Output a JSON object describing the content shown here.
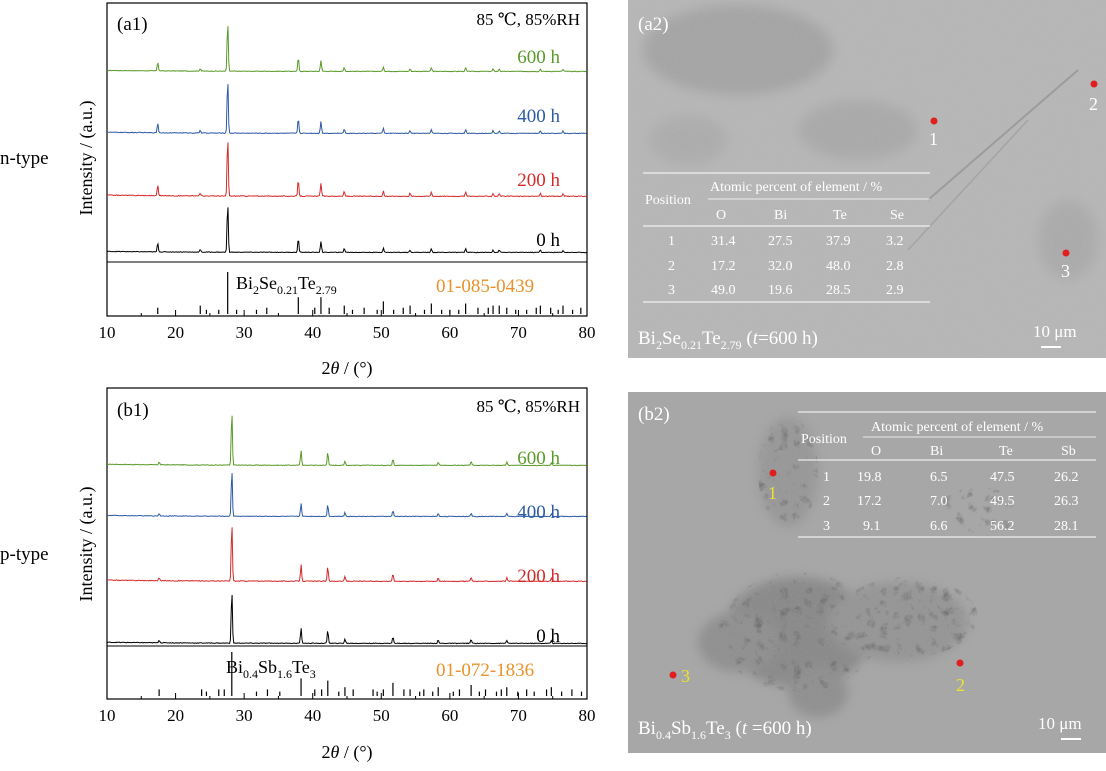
{
  "chart_data": [
    {
      "type": "line",
      "panel_label": "(a1)",
      "side_label": "n-type",
      "condition": "85 ℃, 85%RH",
      "xlabel_prefix": "2",
      "xlabel_theta": "θ",
      "xlabel_suffix": " / (°)",
      "ylabel": "Intensity / (a.u.)",
      "xlim": [
        10,
        80
      ],
      "xticks": [
        "10",
        "20",
        "30",
        "40",
        "50",
        "60",
        "70",
        "80"
      ],
      "series": [
        {
          "name": "600 h",
          "color": "#5a9a2a"
        },
        {
          "name": "400 h",
          "color": "#2d5aa6"
        },
        {
          "name": "200 h",
          "color": "#d42a2a"
        },
        {
          "name": "0 h",
          "color": "#000000"
        }
      ],
      "peaks": [
        [
          17.4,
          0.18
        ],
        [
          23.6,
          0.05
        ],
        [
          27.6,
          1.0
        ],
        [
          37.9,
          0.28
        ],
        [
          41.2,
          0.22
        ],
        [
          44.6,
          0.08
        ],
        [
          50.3,
          0.09
        ],
        [
          54.2,
          0.05
        ],
        [
          57.3,
          0.07
        ],
        [
          62.3,
          0.07
        ],
        [
          66.3,
          0.05
        ],
        [
          67.2,
          0.05
        ],
        [
          73.2,
          0.05
        ],
        [
          76.5,
          0.04
        ]
      ],
      "reference": {
        "formula": {
          "pre": "Bi",
          "sub1": "2",
          "mid1": "Se",
          "sub2": "0.21",
          "mid2": "Te",
          "sub3": "2.79"
        },
        "pdf_card": "01-085-0439",
        "card_color": "#e8922a",
        "lines": [
          [
            17.4,
            0.15
          ],
          [
            23.6,
            0.2
          ],
          [
            24.5,
            0.1
          ],
          [
            26.3,
            0.1
          ],
          [
            27.6,
            1.0
          ],
          [
            28.9,
            0.1
          ],
          [
            31.8,
            0.1
          ],
          [
            33.3,
            0.15
          ],
          [
            37.9,
            0.4
          ],
          [
            40.3,
            0.15
          ],
          [
            41.2,
            0.4
          ],
          [
            42.4,
            0.15
          ],
          [
            44.6,
            0.2
          ],
          [
            45.8,
            0.1
          ],
          [
            47.5,
            0.15
          ],
          [
            49.4,
            0.1
          ],
          [
            50.3,
            0.3
          ],
          [
            51.8,
            0.1
          ],
          [
            53.2,
            0.15
          ],
          [
            54.2,
            0.2
          ],
          [
            56.3,
            0.1
          ],
          [
            57.3,
            0.25
          ],
          [
            58.8,
            0.1
          ],
          [
            60.0,
            0.1
          ],
          [
            61.3,
            0.1
          ],
          [
            62.3,
            0.25
          ],
          [
            64.1,
            0.15
          ],
          [
            65.6,
            0.15
          ],
          [
            66.3,
            0.2
          ],
          [
            67.2,
            0.2
          ],
          [
            68.3,
            0.15
          ],
          [
            69.6,
            0.1
          ],
          [
            71.2,
            0.1
          ],
          [
            72.6,
            0.15
          ],
          [
            73.2,
            0.2
          ],
          [
            74.7,
            0.15
          ],
          [
            75.8,
            0.1
          ],
          [
            76.5,
            0.2
          ],
          [
            77.9,
            0.1
          ],
          [
            79.1,
            0.15
          ]
        ]
      }
    },
    {
      "type": "line",
      "panel_label": "(b1)",
      "side_label": "p-type",
      "condition": "85 ℃, 85%RH",
      "xlabel_prefix": "2",
      "xlabel_theta": "θ",
      "xlabel_suffix": " / (°)",
      "ylabel": "Intensity / (a.u.)",
      "xlim": [
        10,
        80
      ],
      "xticks": [
        "10",
        "20",
        "30",
        "40",
        "50",
        "60",
        "70",
        "80"
      ],
      "series": [
        {
          "name": "600 h",
          "color": "#5a9a2a"
        },
        {
          "name": "400 h",
          "color": "#2d5aa6"
        },
        {
          "name": "200 h",
          "color": "#d42a2a"
        },
        {
          "name": "0 h",
          "color": "#000000"
        }
      ],
      "peaks": [
        [
          17.6,
          0.05
        ],
        [
          28.2,
          1.0
        ],
        [
          38.3,
          0.28
        ],
        [
          42.2,
          0.25
        ],
        [
          44.7,
          0.08
        ],
        [
          51.7,
          0.12
        ],
        [
          58.3,
          0.06
        ],
        [
          63.1,
          0.07
        ],
        [
          68.3,
          0.06
        ],
        [
          74.8,
          0.05
        ]
      ],
      "reference": {
        "formula": {
          "pre": "Bi",
          "sub1": "0.4",
          "mid1": "Sb",
          "sub2": "1.6",
          "mid2": "Te",
          "sub3": "3"
        },
        "pdf_card": "01-072-1836",
        "card_color": "#e8922a",
        "lines": [
          [
            17.6,
            0.15
          ],
          [
            23.8,
            0.15
          ],
          [
            24.5,
            0.1
          ],
          [
            26.3,
            0.15
          ],
          [
            27.1,
            0.15
          ],
          [
            28.2,
            1.0
          ],
          [
            31.8,
            0.1
          ],
          [
            33.4,
            0.15
          ],
          [
            35.2,
            0.1
          ],
          [
            38.3,
            0.4
          ],
          [
            40.3,
            0.15
          ],
          [
            41.3,
            0.15
          ],
          [
            42.2,
            0.35
          ],
          [
            43.8,
            0.1
          ],
          [
            44.7,
            0.2
          ],
          [
            45.9,
            0.15
          ],
          [
            48.8,
            0.15
          ],
          [
            49.4,
            0.1
          ],
          [
            50.3,
            0.15
          ],
          [
            51.7,
            0.3
          ],
          [
            53.3,
            0.15
          ],
          [
            54.2,
            0.15
          ],
          [
            55.6,
            0.1
          ],
          [
            56.2,
            0.15
          ],
          [
            57.5,
            0.1
          ],
          [
            58.3,
            0.2
          ],
          [
            60.5,
            0.1
          ],
          [
            61.4,
            0.15
          ],
          [
            63.1,
            0.25
          ],
          [
            64.3,
            0.1
          ],
          [
            65.2,
            0.15
          ],
          [
            66.8,
            0.1
          ],
          [
            67.5,
            0.15
          ],
          [
            68.3,
            0.2
          ],
          [
            69.9,
            0.1
          ],
          [
            71.2,
            0.15
          ],
          [
            72.3,
            0.1
          ],
          [
            74.1,
            0.15
          ],
          [
            74.8,
            0.2
          ],
          [
            76.3,
            0.1
          ],
          [
            77.8,
            0.15
          ],
          [
            79.2,
            0.1
          ]
        ]
      }
    }
  ],
  "micrographs": [
    {
      "panel_label": "(a2)",
      "caption": {
        "pre": "Bi",
        "sub1": "2",
        "mid1": "Se",
        "sub2": "0.21",
        "mid2": "Te",
        "sub3": "2.79",
        "post1": " (",
        "t": "t",
        "post2": "=600 h)"
      },
      "scale_bar": "10 μm",
      "marker_label_color": "#ffffff",
      "points": [
        {
          "label": "1"
        },
        {
          "label": "2"
        },
        {
          "label": "3"
        }
      ],
      "table": {
        "pos_header": "Position",
        "group_header": "Atomic percent of element / %",
        "elements": [
          "O",
          "Bi",
          "Te",
          "Se"
        ],
        "rows": [
          [
            "1",
            "31.4",
            "27.5",
            "37.9",
            "3.2"
          ],
          [
            "2",
            "17.2",
            "32.0",
            "48.0",
            "2.8"
          ],
          [
            "3",
            "49.0",
            "19.6",
            "28.5",
            "2.9"
          ]
        ]
      }
    },
    {
      "panel_label": "(b2)",
      "caption": {
        "pre": "Bi",
        "sub1": "0.4",
        "mid1": "Sb",
        "sub2": "1.6",
        "mid2": "Te",
        "sub3": "3",
        "post1": " (",
        "t": "t",
        "post2": " =600 h)"
      },
      "scale_bar": "10 μm",
      "marker_label_color": "#f0e030",
      "points": [
        {
          "label": "1"
        },
        {
          "label": "2"
        },
        {
          "label": "3"
        }
      ],
      "table": {
        "pos_header": "Position",
        "group_header": "Atomic percent of element / %",
        "elements": [
          "O",
          "Bi",
          "Te",
          "Sb"
        ],
        "rows": [
          [
            "1",
            "19.8",
            "6.5",
            "47.5",
            "26.2"
          ],
          [
            "2",
            "17.2",
            "7.0",
            "49.5",
            "26.3"
          ],
          [
            "3",
            "9.1",
            "6.6",
            "56.2",
            "28.1"
          ]
        ]
      }
    }
  ]
}
